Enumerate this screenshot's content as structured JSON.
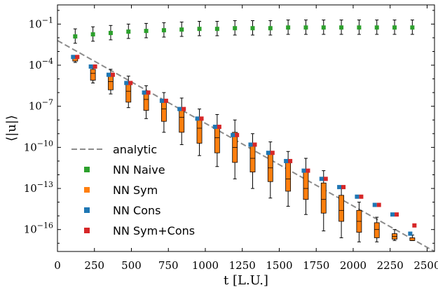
{
  "chart_data": {
    "type": "scatter",
    "title": "",
    "xlabel": "t [L.U.]",
    "ylabel": "⟨|u|⟩",
    "xlim": [
      0,
      2550
    ],
    "ylim_log10": [
      -17.6,
      0.4
    ],
    "y_scale": "log",
    "x_ticks": [
      0,
      250,
      500,
      750,
      1000,
      1250,
      1500,
      1750,
      2000,
      2250,
      2500
    ],
    "x_tick_labels": [
      "0",
      "250",
      "500",
      "750",
      "1000",
      "1250",
      "1500",
      "1750",
      "2000",
      "2250",
      "2500"
    ],
    "y_ticks_log10": [
      -1,
      -4,
      -7,
      -10,
      -13,
      -16
    ],
    "y_tick_labels": [
      "10^-1",
      "10^-4",
      "10^-7",
      "10^-10",
      "10^-13",
      "10^-16"
    ],
    "legend_position": "lower-left",
    "colors": {
      "analytic": "#8c8c8c",
      "naive": "#2ca02c",
      "sym": "#ff7f0e",
      "cons": "#1f77b4",
      "symcons": "#d62728"
    },
    "series": [
      {
        "name": "analytic",
        "kind": "line",
        "x": [
          0,
          2550
        ],
        "log10_y": [
          -2.2,
          -17.6
        ]
      },
      {
        "name": "NN Naive",
        "kind": "points",
        "x": [
          120,
          240,
          360,
          480,
          600,
          720,
          840,
          960,
          1080,
          1200,
          1320,
          1440,
          1560,
          1680,
          1800,
          1920,
          2040,
          2160,
          2280,
          2400
        ],
        "log10_y": [
          -1.9,
          -1.75,
          -1.65,
          -1.55,
          -1.5,
          -1.45,
          -1.4,
          -1.35,
          -1.35,
          -1.3,
          -1.3,
          -1.3,
          -1.25,
          -1.25,
          -1.25,
          -1.25,
          -1.25,
          -1.25,
          -1.25,
          -1.25
        ],
        "log10_err_lo": [
          -2.4,
          -2.25,
          -2.15,
          -2.05,
          -2.0,
          -1.95,
          -1.9,
          -1.85,
          -1.85,
          -1.8,
          -1.8,
          -1.8,
          -1.75,
          -1.75,
          -1.75,
          -1.75,
          -1.75,
          -1.75,
          -1.75,
          -1.75
        ],
        "log10_err_hi": [
          -1.35,
          -1.2,
          -1.1,
          -1.0,
          -0.95,
          -0.9,
          -0.85,
          -0.8,
          -0.8,
          -0.75,
          -0.75,
          -0.75,
          -0.7,
          -0.7,
          -0.7,
          -0.7,
          -0.7,
          -0.7,
          -0.7,
          -0.7
        ]
      },
      {
        "name": "NN Sym",
        "kind": "boxes",
        "x": [
          120,
          240,
          360,
          480,
          600,
          720,
          840,
          960,
          1080,
          1200,
          1320,
          1440,
          1560,
          1680,
          1800,
          1920,
          2040,
          2160,
          2280,
          2400
        ],
        "log10_y": [
          -3.5,
          -4.6,
          -5.2,
          -5.9,
          -6.5,
          -7.2,
          -7.8,
          -8.6,
          -9.3,
          -10.0,
          -10.8,
          -11.5,
          -12.3,
          -13.0,
          -13.8,
          -14.6,
          -15.4,
          -16.0,
          -16.5,
          -16.8
        ],
        "log10_box_lo": [
          -3.7,
          -5.1,
          -5.8,
          -6.7,
          -7.3,
          -8.1,
          -8.9,
          -9.7,
          -10.4,
          -11.1,
          -11.8,
          -12.5,
          -13.2,
          -13.8,
          -14.8,
          -15.4,
          -16.2,
          -16.6,
          -16.7,
          -16.8
        ],
        "log10_box_hi": [
          -3.4,
          -4.3,
          -4.7,
          -5.3,
          -6.0,
          -6.6,
          -7.1,
          -7.8,
          -8.4,
          -8.9,
          -9.8,
          -10.4,
          -11.1,
          -11.8,
          -12.6,
          -13.5,
          -14.6,
          -15.5,
          -16.3,
          -16.6
        ],
        "log10_whisk_lo": [
          -3.8,
          -5.3,
          -6.1,
          -7.1,
          -7.9,
          -8.9,
          -9.8,
          -10.6,
          -11.4,
          -12.3,
          -13.0,
          -13.7,
          -14.3,
          -14.9,
          -16.1,
          -16.6,
          -16.9,
          -16.9,
          -16.8,
          -16.8
        ],
        "log10_whisk_hi": [
          -3.3,
          -4.1,
          -4.3,
          -4.8,
          -5.5,
          -6.0,
          -6.4,
          -7.2,
          -7.6,
          -8.0,
          -9.0,
          -9.6,
          -10.3,
          -10.8,
          -11.7,
          -12.8,
          -14.0,
          -15.1,
          -16.0,
          -16.4
        ]
      },
      {
        "name": "NN Cons",
        "kind": "points",
        "x": [
          120,
          240,
          360,
          480,
          600,
          720,
          840,
          960,
          1080,
          1200,
          1320,
          1440,
          1560,
          1680,
          1800,
          1920,
          2040,
          2160,
          2280,
          2400
        ],
        "log10_y": [
          -3.4,
          -4.1,
          -4.7,
          -5.3,
          -6.0,
          -6.6,
          -7.2,
          -7.9,
          -8.5,
          -9.1,
          -9.8,
          -10.4,
          -11.0,
          -11.7,
          -12.3,
          -12.9,
          -13.6,
          -14.2,
          -14.9,
          -16.3
        ],
        "log10_err_lo": [
          -3.5,
          -4.2,
          -4.8,
          -5.4,
          -6.1,
          -6.7,
          -7.3,
          -8.0,
          -8.6,
          -9.2,
          -9.9,
          -10.5,
          -11.1,
          -11.8,
          -12.4,
          -13.0,
          -13.7,
          -14.3,
          -15.0,
          -16.4
        ],
        "log10_err_hi": [
          -3.3,
          -4.0,
          -4.6,
          -5.2,
          -5.9,
          -6.5,
          -7.1,
          -7.8,
          -8.4,
          -9.0,
          -9.7,
          -10.3,
          -10.9,
          -11.6,
          -12.2,
          -12.8,
          -13.5,
          -14.1,
          -14.8,
          -16.2
        ]
      },
      {
        "name": "NN Sym+Cons",
        "kind": "points",
        "x": [
          120,
          240,
          360,
          480,
          600,
          720,
          840,
          960,
          1080,
          1200,
          1320,
          1440,
          1560,
          1680,
          1800,
          1920,
          2040,
          2160,
          2280,
          2400
        ],
        "log10_y": [
          -3.4,
          -4.1,
          -4.7,
          -5.3,
          -6.0,
          -6.6,
          -7.2,
          -7.9,
          -8.5,
          -9.1,
          -9.8,
          -10.4,
          -11.0,
          -11.7,
          -12.3,
          -12.9,
          -13.6,
          -14.2,
          -14.9,
          -15.7
        ],
        "log10_err_lo": [
          -3.5,
          -4.2,
          -4.8,
          -5.4,
          -6.1,
          -6.7,
          -7.3,
          -8.0,
          -8.6,
          -9.2,
          -9.9,
          -10.5,
          -11.1,
          -11.8,
          -12.4,
          -13.0,
          -13.7,
          -14.3,
          -15.0,
          -15.8
        ],
        "log10_err_hi": [
          -3.3,
          -4.0,
          -4.6,
          -5.2,
          -5.9,
          -6.5,
          -7.1,
          -7.8,
          -8.4,
          -9.0,
          -9.7,
          -10.3,
          -10.9,
          -11.6,
          -12.2,
          -12.8,
          -13.5,
          -14.1,
          -14.8,
          -15.6
        ]
      }
    ],
    "legend": [
      {
        "label": "analytic",
        "series": "analytic"
      },
      {
        "label": "NN Naive",
        "series": "NN Naive"
      },
      {
        "label": "NN Sym",
        "series": "NN Sym"
      },
      {
        "label": "NN Cons",
        "series": "NN Cons"
      },
      {
        "label": "NN Sym+Cons",
        "series": "NN Sym+Cons"
      }
    ]
  }
}
